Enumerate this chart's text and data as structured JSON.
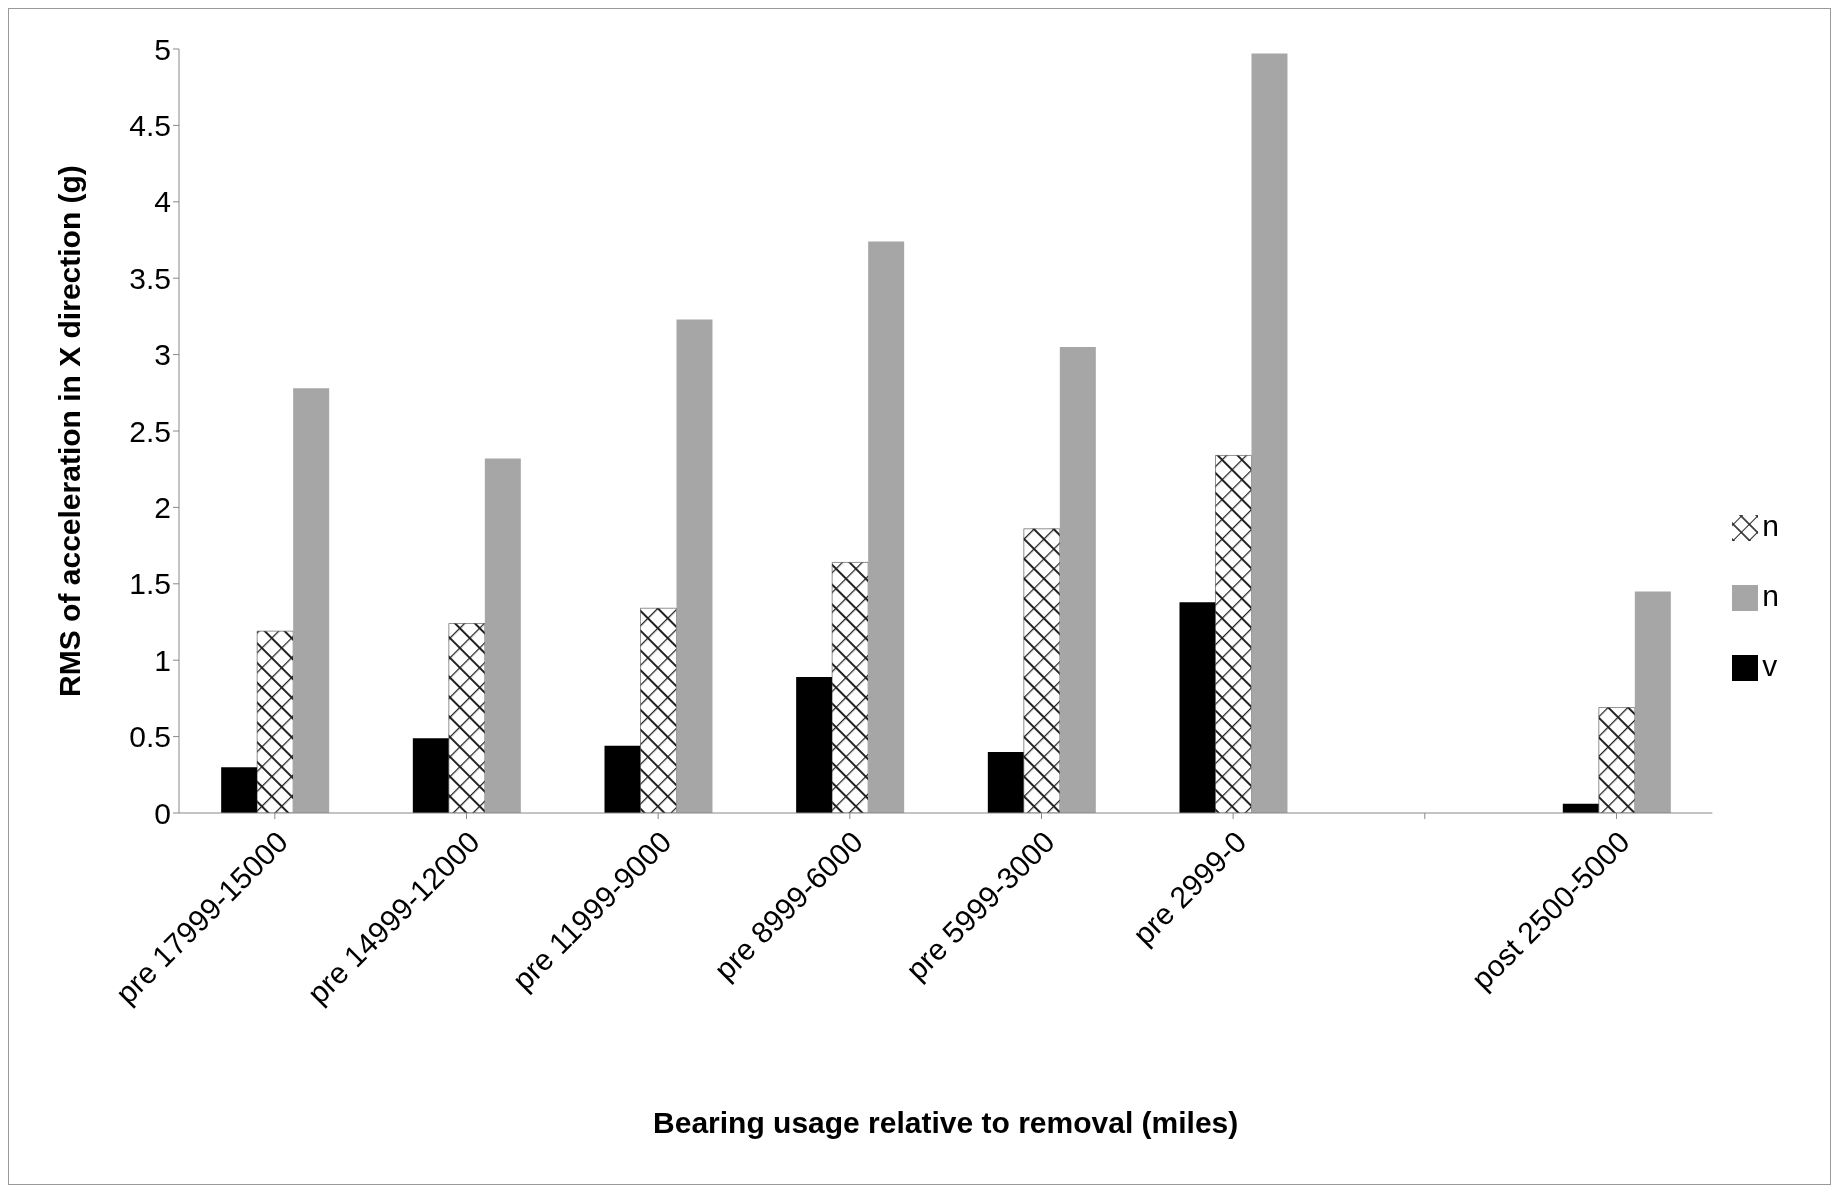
{
  "chart_data": {
    "type": "bar",
    "xlabel": "Bearing usage relative to removal (miles)",
    "ylabel": "RMS of acceleration in X direction (g)",
    "categories": [
      "pre 17999-15000",
      "pre 14999-12000",
      "pre 11999-9000",
      "pre 8999-6000",
      "pre 5999-3000",
      "pre 2999-0",
      null,
      "post 2500-5000"
    ],
    "series": [
      {
        "name": "v",
        "color": "#000000",
        "values": [
          0.3,
          0.49,
          0.44,
          0.89,
          0.4,
          1.38,
          null,
          0.06
        ]
      },
      {
        "name": "n",
        "color": "#222222",
        "values": [
          1.19,
          1.24,
          1.34,
          1.64,
          1.86,
          2.34,
          null,
          0.69
        ]
      },
      {
        "name": "n",
        "color": "#a6a6a6",
        "values": [
          2.78,
          2.32,
          3.23,
          3.74,
          3.05,
          4.97,
          null,
          1.45
        ]
      }
    ],
    "ylim": [
      0,
      5
    ],
    "yticks": [
      0,
      0.5,
      1,
      1.5,
      2,
      2.5,
      3,
      3.5,
      4,
      4.5,
      5
    ],
    "grid": false,
    "legend": "right"
  }
}
